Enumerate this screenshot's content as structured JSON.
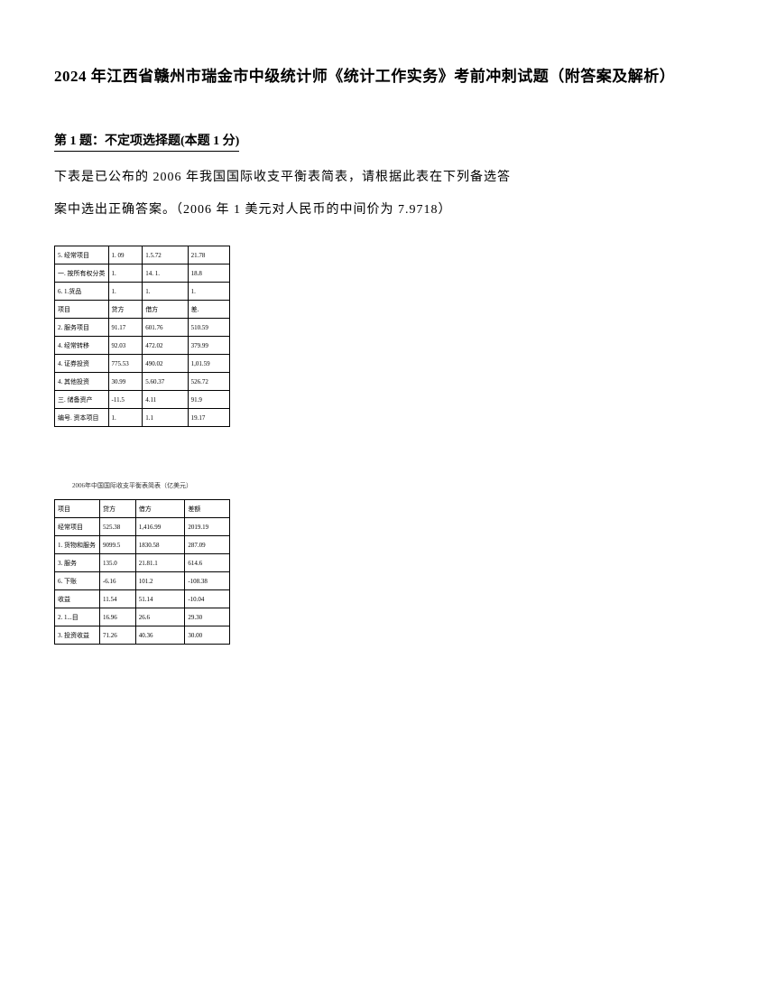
{
  "title": "2024 年江西省赣州市瑞金市中级统计师《统计工作实务》考前冲刺试题（附答案及解析）",
  "question": {
    "header": "第 1 题：不定项选择题(本题 1 分)",
    "line1": "下表是已公布的 2006 年我国国际收支平衡表简表，请根据此表在下列备选答",
    "line2": "案中选出正确答案。（2006 年 1 美元对人民币的中间价为 7.9718）"
  },
  "table1": {
    "rows": [
      [
        "5. 经常项目",
        "1. 09",
        "1.5.72",
        "21.78"
      ],
      [
        "一. 按所有权分类",
        "1.",
        "14. 1.",
        "18.8"
      ],
      [
        "6. 1.货品",
        "1.",
        "1.",
        "1."
      ],
      [
        "项目",
        "贷方",
        "借方",
        "差."
      ],
      [
        "2. 服务项目",
        "91.17",
        "601.76",
        "510.59"
      ],
      [
        "4. 经常转移",
        "92.03",
        "472.02",
        "379.99"
      ],
      [
        "4. 证券投资",
        "775.53",
        "490.02",
        "1,01.59"
      ],
      [
        "4. 其他投资",
        "30.99",
        "5.60.37",
        "526.72"
      ],
      [
        "三. 储备资产",
        "-11.5",
        "4.11",
        "91.9"
      ],
      [
        "编号. 资本项目",
        "1.",
        "1.1",
        "19.17"
      ]
    ]
  },
  "table2_title": "2006年中国国际收支平衡表简表（亿美元）",
  "table2": {
    "rows": [
      [
        "项目",
        "贷方",
        "借方",
        "差额"
      ],
      [
        "经常项目",
        "525.38",
        "1,416.99",
        "2019.19"
      ],
      [
        "1. 货物和服务",
        "9099.5",
        "1830.58",
        "287.09"
      ],
      [
        "3. 服务",
        "135.0",
        "21.81.1",
        "614.6"
      ],
      [
        "6. 下账",
        "-6.16",
        "101.2",
        "-108.38"
      ],
      [
        "收益",
        "11.54",
        "51.14",
        "-10.04"
      ],
      [
        "2. 1...目",
        "16.96",
        "26.6",
        "29.30"
      ],
      [
        "3. 投资收益",
        "71.26",
        "40.36",
        "30.00"
      ]
    ]
  }
}
